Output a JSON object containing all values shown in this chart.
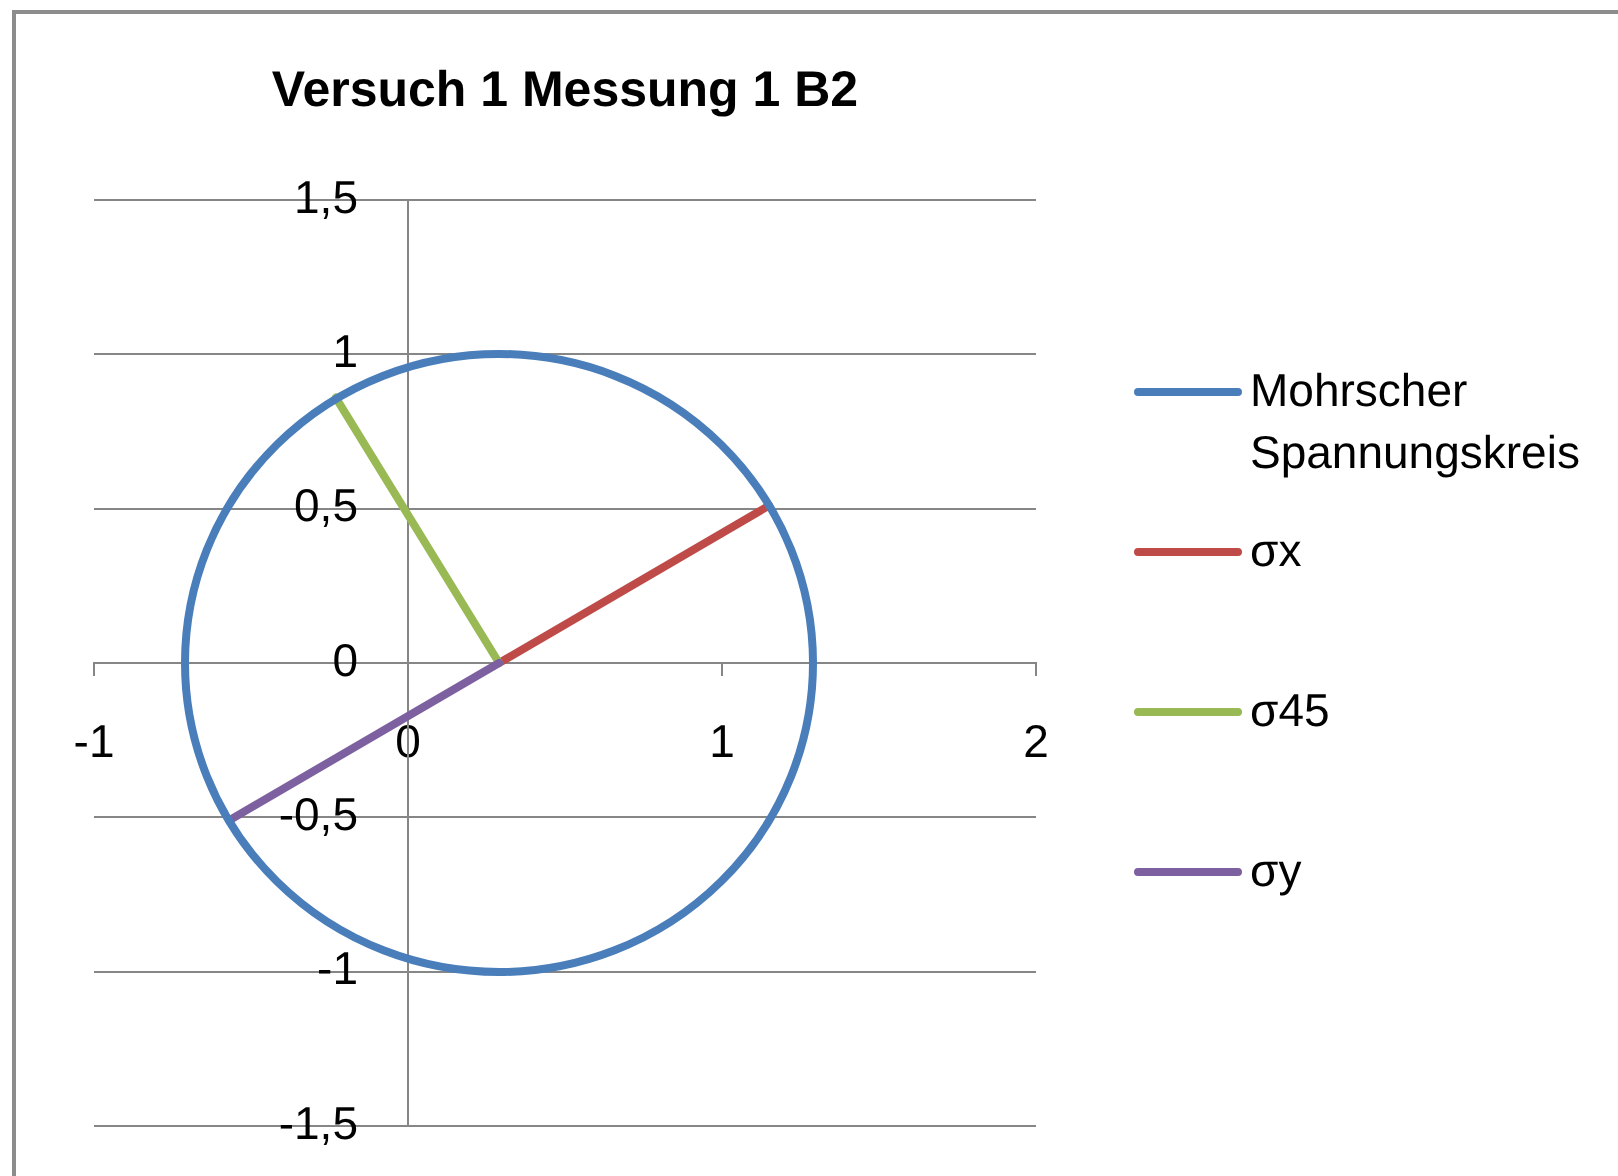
{
  "chart_data": {
    "type": "line",
    "title": "Versuch 1 Messung 1 B2",
    "xlim": [
      -1,
      2
    ],
    "xticks": [
      -1,
      0,
      1,
      2
    ],
    "ylim": [
      -1.5,
      1.5
    ],
    "yticks": [
      {
        "value": -1.5,
        "label": "-1,5"
      },
      -1,
      {
        "value": -0.5,
        "label": "-0,5"
      },
      0,
      {
        "value": 0.5,
        "label": "0,5"
      },
      1,
      {
        "value": 1.5,
        "label": "1,5"
      }
    ],
    "grid": "y",
    "legend": "right",
    "marker": "none",
    "annotations": [
      "Mohrscher Spannungskreis"
    ],
    "series": [
      {
        "name": "σx",
        "color": "#be4b48",
        "x": [
          0.29,
          1.15
        ],
        "values": [
          0,
          0.51
        ]
      },
      {
        "name": "σ45",
        "color": "#98b954",
        "x": [
          0.29,
          -0.23
        ],
        "values": [
          0,
          0.86
        ]
      },
      {
        "name": "σy",
        "color": "#7d60a0",
        "x": [
          0.29,
          -0.57
        ],
        "values": [
          0,
          -0.51
        ]
      }
    ]
  }
}
